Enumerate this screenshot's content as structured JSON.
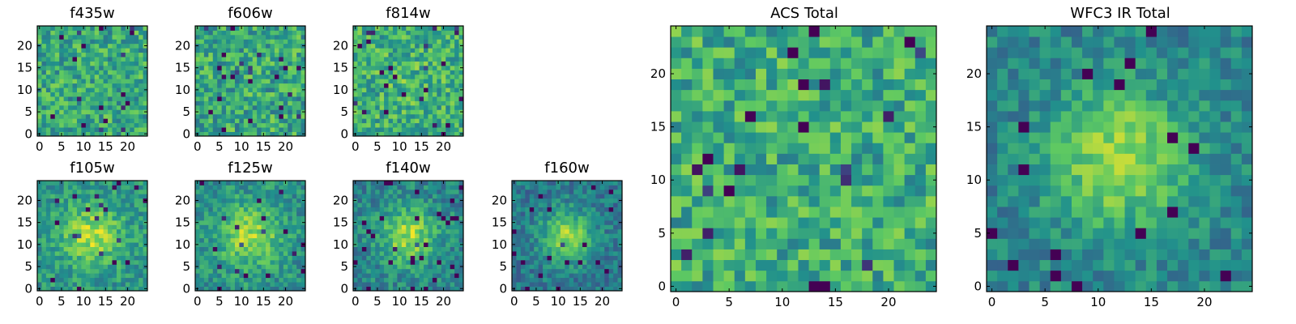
{
  "figure": {
    "colormap": "viridis",
    "colormap_stops": [
      "#440154",
      "#3b528b",
      "#21918c",
      "#5ec962",
      "#fde725"
    ],
    "pixel_grid": "25x25"
  },
  "chart_data": [
    {
      "type": "heatmap",
      "title": "f435w",
      "xlim": [
        0,
        24
      ],
      "ylim": [
        0,
        24
      ],
      "xticks": [
        0,
        5,
        10,
        15,
        20
      ],
      "yticks": [
        0,
        5,
        10,
        15,
        20
      ],
      "pattern": "noise",
      "center": [
        12,
        12
      ],
      "sigma": 4.5,
      "amp": 0.0,
      "noise": 0.3,
      "base": 0.6,
      "seed": 11
    },
    {
      "type": "heatmap",
      "title": "f606w",
      "xlim": [
        0,
        24
      ],
      "ylim": [
        0,
        24
      ],
      "xticks": [
        0,
        5,
        10,
        15,
        20
      ],
      "yticks": [
        0,
        5,
        10,
        15,
        20
      ],
      "pattern": "noise",
      "center": [
        12,
        12
      ],
      "sigma": 4.5,
      "amp": 0.0,
      "noise": 0.32,
      "base": 0.6,
      "seed": 23
    },
    {
      "type": "heatmap",
      "title": "f814w",
      "xlim": [
        0,
        24
      ],
      "ylim": [
        0,
        24
      ],
      "xticks": [
        0,
        5,
        10,
        15,
        20
      ],
      "yticks": [
        0,
        5,
        10,
        15,
        20
      ],
      "pattern": "noise",
      "center": [
        12,
        12
      ],
      "sigma": 4.5,
      "amp": 0.05,
      "noise": 0.3,
      "base": 0.62,
      "seed": 37
    },
    {
      "type": "heatmap",
      "title": "f105w",
      "xlim": [
        0,
        24
      ],
      "ylim": [
        0,
        24
      ],
      "xticks": [
        0,
        5,
        10,
        15,
        20
      ],
      "yticks": [
        0,
        5,
        10,
        15,
        20
      ],
      "pattern": "blob",
      "center": [
        12,
        12
      ],
      "sigma": 4.8,
      "amp": 0.35,
      "noise": 0.22,
      "base": 0.52,
      "seed": 41
    },
    {
      "type": "heatmap",
      "title": "f125w",
      "xlim": [
        0,
        24
      ],
      "ylim": [
        0,
        24
      ],
      "xticks": [
        0,
        5,
        10,
        15,
        20
      ],
      "yticks": [
        0,
        5,
        10,
        15,
        20
      ],
      "pattern": "blob",
      "center": [
        12,
        12
      ],
      "sigma": 5.0,
      "amp": 0.35,
      "noise": 0.22,
      "base": 0.5,
      "seed": 53
    },
    {
      "type": "heatmap",
      "title": "f140w",
      "xlim": [
        0,
        24
      ],
      "ylim": [
        0,
        24
      ],
      "xticks": [
        0,
        5,
        10,
        15,
        20
      ],
      "yticks": [
        0,
        5,
        10,
        15,
        20
      ],
      "pattern": "blob",
      "center": [
        12,
        12
      ],
      "sigma": 4.5,
      "amp": 0.4,
      "noise": 0.22,
      "base": 0.45,
      "seed": 67
    },
    {
      "type": "heatmap",
      "title": "f160w",
      "xlim": [
        0,
        24
      ],
      "ylim": [
        0,
        24
      ],
      "xticks": [
        0,
        5,
        10,
        15,
        20
      ],
      "yticks": [
        0,
        5,
        10,
        15,
        20
      ],
      "pattern": "blob",
      "center": [
        12,
        12
      ],
      "sigma": 4.0,
      "amp": 0.45,
      "noise": 0.2,
      "base": 0.4,
      "seed": 79
    },
    {
      "type": "heatmap",
      "title": "ACS Total",
      "xlim": [
        0,
        24
      ],
      "ylim": [
        0,
        24
      ],
      "xticks": [
        0,
        5,
        10,
        15,
        20
      ],
      "yticks": [
        0,
        5,
        10,
        15,
        20
      ],
      "pattern": "noise",
      "center": [
        12,
        12
      ],
      "sigma": 4.5,
      "amp": 0.0,
      "noise": 0.3,
      "base": 0.62,
      "seed": 97
    },
    {
      "type": "heatmap",
      "title": "WFC3 IR Total",
      "xlim": [
        0,
        24
      ],
      "ylim": [
        0,
        24
      ],
      "xticks": [
        0,
        5,
        10,
        15,
        20
      ],
      "yticks": [
        0,
        5,
        10,
        15,
        20
      ],
      "pattern": "blob",
      "center": [
        12,
        12
      ],
      "sigma": 4.5,
      "amp": 0.42,
      "noise": 0.2,
      "base": 0.45,
      "seed": 113
    }
  ]
}
